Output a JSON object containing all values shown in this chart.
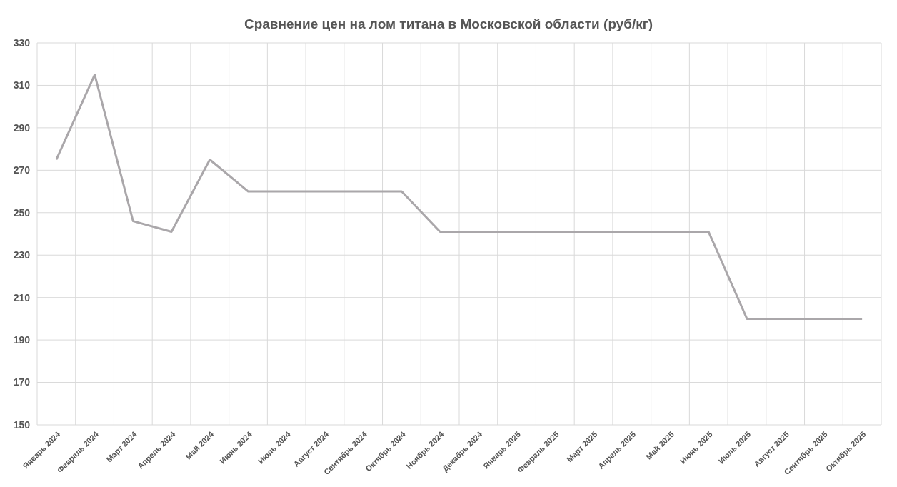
{
  "chart_data": {
    "type": "line",
    "title": "Сравнение цен на лом титана в Московской области (руб/кг)",
    "categories": [
      "Январь 2024",
      "Февраль 2024",
      "Март 2024",
      "Апрель 2024",
      "Май 2024",
      "Июнь 2024",
      "Июль 2024",
      "Август 2024",
      "Сентябрь 2024",
      "Октябрь 2024",
      "Ноябрь 2024",
      "Декабрь 2024",
      "Январь 2025",
      "Февраль 2025",
      "Март 2025",
      "Апрель 2025",
      "Май 2025",
      "Июнь 2025",
      "Июль 2025",
      "Август 2025",
      "Сентябрь 2025",
      "Октябрь 2025"
    ],
    "series": [
      {
        "color": "#aaa7aa",
        "values": [
          275,
          315,
          246,
          241,
          275,
          260,
          260,
          260,
          260,
          260,
          241,
          241,
          241,
          241,
          241,
          241,
          241,
          241,
          200,
          200,
          200,
          200
        ]
      }
    ],
    "ylim": [
      150,
      330
    ],
    "yticks": [
      150,
      170,
      190,
      210,
      230,
      250,
      270,
      290,
      310,
      330
    ],
    "grid": true,
    "marker": "none",
    "line_style": "solid"
  }
}
